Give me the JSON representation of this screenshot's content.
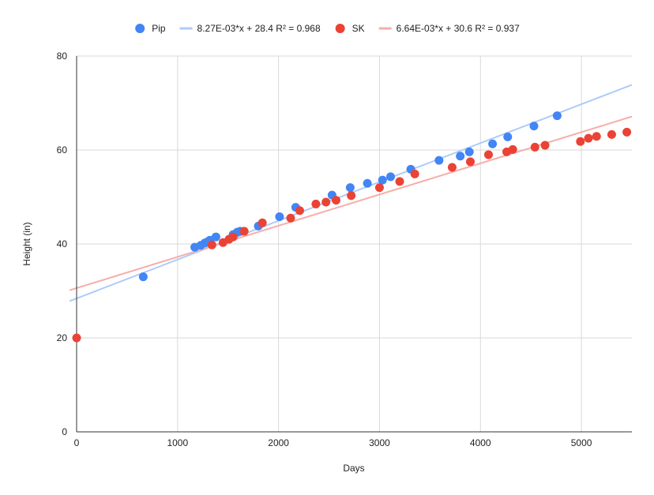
{
  "chart_data": {
    "type": "scatter",
    "title": "",
    "xlabel": "Days",
    "ylabel": "Height (in)",
    "xlim": [
      0,
      5500
    ],
    "ylim": [
      0,
      80
    ],
    "x_ticks": [
      0,
      1000,
      2000,
      3000,
      4000,
      5000
    ],
    "y_ticks": [
      0,
      20,
      40,
      60,
      80
    ],
    "grid": true,
    "legend_position": "top",
    "series": [
      {
        "name": "Pip",
        "color": "#4285f4",
        "points": [
          [
            660,
            33.0
          ],
          [
            1170,
            39.3
          ],
          [
            1230,
            39.7
          ],
          [
            1270,
            40.2
          ],
          [
            1300,
            40.5
          ],
          [
            1320,
            40.8
          ],
          [
            1380,
            41.5
          ],
          [
            1550,
            42.0
          ],
          [
            1590,
            42.5
          ],
          [
            1620,
            42.7
          ],
          [
            1800,
            43.8
          ],
          [
            2010,
            45.8
          ],
          [
            2170,
            47.8
          ],
          [
            2530,
            50.4
          ],
          [
            2710,
            52.0
          ],
          [
            2880,
            52.9
          ],
          [
            3030,
            53.6
          ],
          [
            3110,
            54.3
          ],
          [
            3310,
            55.9
          ],
          [
            3590,
            57.8
          ],
          [
            3800,
            58.7
          ],
          [
            3890,
            59.6
          ],
          [
            4120,
            61.3
          ],
          [
            4270,
            62.8
          ],
          [
            4530,
            65.1
          ],
          [
            4760,
            67.3
          ]
        ],
        "trendline": {
          "label": "8.27E-03*x + 28.4 R² = 0.968",
          "slope": 0.00827,
          "intercept": 28.4,
          "color": "#aecbfa"
        }
      },
      {
        "name": "SK",
        "color": "#ea4335",
        "points": [
          [
            0,
            20.0
          ],
          [
            1340,
            39.8
          ],
          [
            1450,
            40.3
          ],
          [
            1510,
            41.0
          ],
          [
            1550,
            41.5
          ],
          [
            1660,
            42.7
          ],
          [
            1840,
            44.5
          ],
          [
            2120,
            45.5
          ],
          [
            2210,
            47.1
          ],
          [
            2370,
            48.5
          ],
          [
            2470,
            48.9
          ],
          [
            2570,
            49.3
          ],
          [
            2720,
            50.3
          ],
          [
            3000,
            52.0
          ],
          [
            3200,
            53.3
          ],
          [
            3350,
            54.9
          ],
          [
            3720,
            56.3
          ],
          [
            3900,
            57.5
          ],
          [
            4080,
            59.0
          ],
          [
            4260,
            59.6
          ],
          [
            4320,
            60.1
          ],
          [
            4540,
            60.6
          ],
          [
            4640,
            61.0
          ],
          [
            4990,
            61.8
          ],
          [
            5070,
            62.5
          ],
          [
            5150,
            62.9
          ],
          [
            5300,
            63.3
          ],
          [
            5450,
            63.8
          ]
        ],
        "trendline": {
          "label": "6.64E-03*x + 30.6 R² = 0.937",
          "slope": 0.00664,
          "intercept": 30.6,
          "color": "#f6aea9"
        }
      }
    ]
  }
}
